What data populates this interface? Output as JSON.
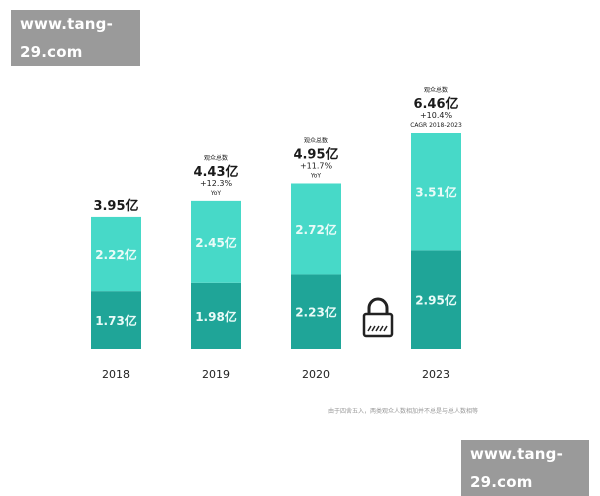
{
  "watermark": {
    "top_text": "www.tang-29.com",
    "bottom_text": "www.tang-29.com"
  },
  "footnote": "由于四舍五入，两类观众人数相加并不总是与总人数相等",
  "lock_icon": "lock-icon",
  "colors": {
    "top_segment": "#47d9c8",
    "bottom_segment": "#1fa598",
    "segment_text": "#e9fbf8",
    "label_text": "#1a1a1a",
    "axis_text": "#222222"
  },
  "chart_data": {
    "type": "bar",
    "stacked": true,
    "categories": [
      "2018",
      "2019",
      "2020",
      "2023"
    ],
    "series": [
      {
        "name": "bottom",
        "values": [
          1.73,
          1.98,
          2.23,
          2.95
        ],
        "labels": [
          "1.73亿",
          "1.98亿",
          "2.23亿",
          "2.95亿"
        ]
      },
      {
        "name": "top",
        "values": [
          2.22,
          2.45,
          2.72,
          3.51
        ],
        "labels": [
          "2.22亿",
          "2.45亿",
          "2.72亿",
          "3.51亿"
        ]
      }
    ],
    "totals": [
      {
        "caption": "",
        "value": "3.95亿",
        "growth": "",
        "growth_label": ""
      },
      {
        "caption": "观众总数",
        "value": "4.43亿",
        "growth": "+12.3%",
        "growth_label": "YoY"
      },
      {
        "caption": "观众总数",
        "value": "4.95亿",
        "growth": "+11.7%",
        "growth_label": "YoY"
      },
      {
        "caption": "观众总数",
        "value": "6.46亿",
        "growth": "+10.4%",
        "growth_label": "CAGR 2018-2023"
      }
    ],
    "ylim": [
      0,
      6.46
    ],
    "title": "",
    "xlabel": "",
    "ylabel": ""
  }
}
